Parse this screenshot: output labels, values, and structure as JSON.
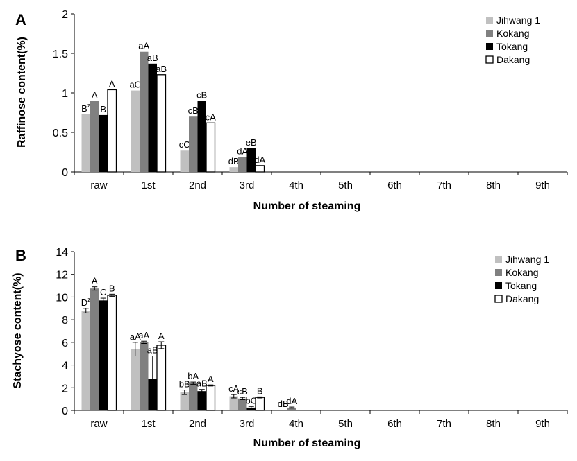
{
  "chart_data": [
    {
      "panel": "A",
      "type": "bar",
      "xlabel": "Number of steaming",
      "ylabel": "Raffinose content(%)",
      "ylim": [
        0,
        2
      ],
      "yticks": [
        0,
        0.5,
        1,
        1.5,
        2
      ],
      "ytick_labels": [
        "0",
        "0.5",
        "1",
        "1.5",
        "2"
      ],
      "categories": [
        "raw",
        "1st",
        "2nd",
        "3rd",
        "4th",
        "5th",
        "6th",
        "7th",
        "8th",
        "9th"
      ],
      "legend_position": "top-right",
      "series": [
        {
          "name": "Jihwang 1",
          "color": "#c0c0c0",
          "values": [
            0.73,
            1.03,
            0.27,
            0.06,
            0,
            0,
            0,
            0,
            0,
            0
          ],
          "labels": [
            "Bz",
            "aC",
            "cC",
            "dB",
            "",
            "",
            "",
            "",
            "",
            ""
          ]
        },
        {
          "name": "Kokang",
          "color": "#808080",
          "values": [
            0.9,
            1.52,
            0.7,
            0.19,
            0,
            0,
            0,
            0,
            0,
            0
          ],
          "labels": [
            "A",
            "aA",
            "cB",
            "dA",
            "",
            "",
            "",
            "",
            "",
            ""
          ]
        },
        {
          "name": "Tokang",
          "color": "#000000",
          "values": [
            0.72,
            1.37,
            0.9,
            0.3,
            0,
            0,
            0,
            0,
            0,
            0
          ],
          "labels": [
            "B",
            "aB",
            "cB",
            "eB",
            "",
            "",
            "",
            "",
            "",
            ""
          ]
        },
        {
          "name": "Dakang",
          "color": "#ffffff",
          "values": [
            1.04,
            1.23,
            0.62,
            0.08,
            0,
            0,
            0,
            0,
            0,
            0
          ],
          "labels": [
            "A",
            "aB",
            "cA",
            "dA",
            "",
            "",
            "",
            "",
            "",
            ""
          ]
        }
      ]
    },
    {
      "panel": "B",
      "type": "bar",
      "xlabel": "Number of steaming",
      "ylabel": "Stachyose content(%)",
      "ylim": [
        0,
        14
      ],
      "yticks": [
        0,
        2,
        4,
        6,
        8,
        10,
        12,
        14
      ],
      "ytick_labels": [
        "0",
        "2",
        "4",
        "6",
        "8",
        "10",
        "12",
        "14"
      ],
      "categories": [
        "raw",
        "1st",
        "2nd",
        "3rd",
        "4th",
        "5th",
        "6th",
        "7th",
        "8th",
        "9th"
      ],
      "legend_position": "top-right",
      "series": [
        {
          "name": "Jihwang 1",
          "color": "#c0c0c0",
          "values": [
            8.8,
            5.4,
            1.6,
            1.25,
            0.05,
            0,
            0,
            0,
            0,
            0
          ],
          "errors": [
            0.2,
            0.6,
            0.2,
            0.15,
            0,
            0,
            0,
            0,
            0,
            0
          ],
          "labels": [
            "Dz",
            "aA",
            "bB",
            "cA",
            "dB",
            "",
            "",
            "",
            "",
            ""
          ]
        },
        {
          "name": "Kokang",
          "color": "#808080",
          "values": [
            10.75,
            6.0,
            2.4,
            1.05,
            0.25,
            0,
            0,
            0,
            0,
            0
          ],
          "errors": [
            0.15,
            0.1,
            0.1,
            0.1,
            0.05,
            0,
            0,
            0,
            0,
            0
          ],
          "labels": [
            "A",
            "aA",
            "bA",
            "cB",
            "dA",
            "",
            "",
            "",
            "",
            ""
          ]
        },
        {
          "name": "Tokang",
          "color": "#000000",
          "values": [
            9.7,
            2.8,
            1.7,
            0.25,
            0,
            0,
            0,
            0,
            0,
            0
          ],
          "errors": [
            0.2,
            2.0,
            0.15,
            0.1,
            0,
            0,
            0,
            0,
            0,
            0
          ],
          "labels": [
            "C",
            "aB",
            "aB",
            "bC",
            "",
            "",
            "",
            "",
            "",
            ""
          ]
        },
        {
          "name": "Dakang",
          "color": "#ffffff",
          "values": [
            10.15,
            5.75,
            2.2,
            1.15,
            0,
            0,
            0,
            0,
            0,
            0
          ],
          "errors": [
            0.1,
            0.3,
            0.05,
            0.05,
            0,
            0,
            0,
            0,
            0,
            0
          ],
          "labels": [
            "B",
            "A",
            "A",
            "B",
            "",
            "",
            "",
            "",
            "",
            ""
          ]
        }
      ]
    }
  ]
}
